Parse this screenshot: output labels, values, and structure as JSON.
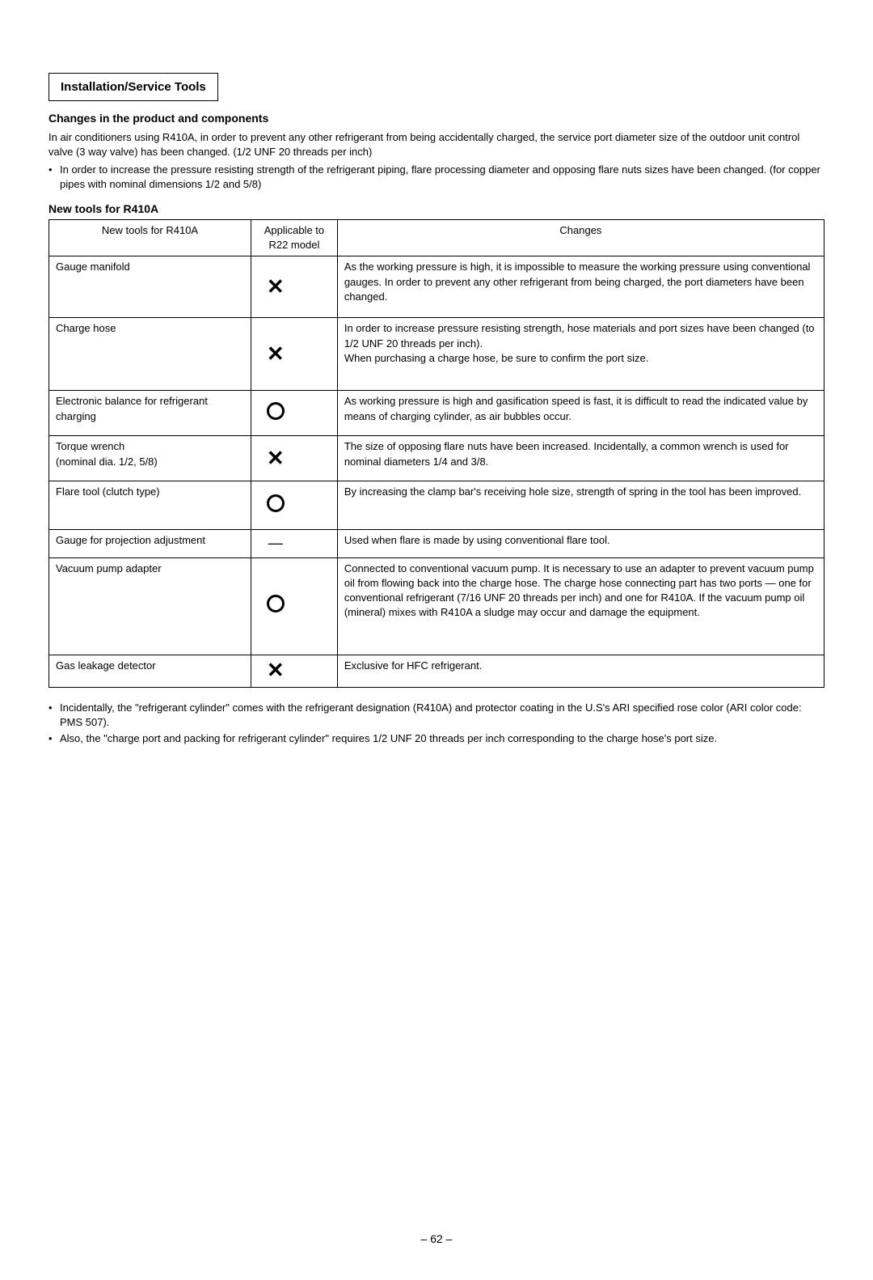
{
  "sectionTitle": "Installation/Service Tools",
  "changesHeading": "Changes in the product and components",
  "introParagraph": "In air conditioners using R410A, in order to prevent any other refrigerant from being accidentally charged, the service port diameter size of the outdoor unit control valve (3 way valve) has been changed. (1/2 UNF 20 threads per inch)",
  "introBullets": [
    "In order to increase the pressure resisting strength of the refrigerant piping, flare processing diameter and opposing flare nuts sizes have been changed. (for copper pipes with nominal dimensions 1/2 and 5/8)"
  ],
  "tableHeading": "New tools for R410A",
  "table": {
    "columns": [
      "New tools for R410A",
      "Applicable to R22 model",
      "Changes"
    ],
    "rows": [
      {
        "tool": "Gauge manifold",
        "symbol": "x",
        "changes": "As the working pressure is high, it is impossible to measure the working pressure using conventional gauges. In order to prevent any other refrigerant from being charged, the port diameters have been changed."
      },
      {
        "tool": "Charge hose",
        "symbol": "x",
        "changes": "In order to increase pressure resisting strength, hose materials and port sizes have been changed (to 1/2 UNF 20 threads per inch).\nWhen purchasing a charge hose, be sure to confirm the port size."
      },
      {
        "tool": "Electronic balance for refrigerant charging",
        "symbol": "o",
        "changes": "As working pressure is high and gasification speed is fast, it is difficult to read the indicated value by means of charging cylinder, as air bubbles occur."
      },
      {
        "tool": "Torque wrench\n(nominal dia. 1/2, 5/8)",
        "symbol": "x",
        "changes": "The size of opposing flare nuts have been increased. Incidentally, a common wrench is used for nominal diameters 1/4 and 3/8."
      },
      {
        "tool": "Flare tool (clutch type)",
        "symbol": "o",
        "changes": "By increasing the clamp bar's receiving hole size, strength of spring in the tool has been improved."
      },
      {
        "tool": "Gauge for projection adjustment",
        "symbol": "dash",
        "changes": "Used when flare is made by using conventional flare tool."
      },
      {
        "tool": "Vacuum pump adapter",
        "symbol": "o",
        "changes": "Connected to conventional vacuum pump. It is necessary to use an adapter to prevent vacuum pump oil from flowing back into the charge hose. The charge hose connecting part has two ports — one for conventional refrigerant (7/16 UNF 20 threads per inch) and one for R410A. If the vacuum pump oil (mineral) mixes with R410A a sludge may occur and damage the equipment."
      },
      {
        "tool": "Gas leakage detector",
        "symbol": "x",
        "changes": "Exclusive for HFC refrigerant."
      }
    ]
  },
  "footBullets": [
    "Incidentally, the \"refrigerant cylinder\" comes with the refrigerant designation (R410A) and protector coating in the U.S's ARI specified rose color (ARI color code: PMS 507).",
    "Also, the \"charge port and packing for refrigerant cylinder\" requires 1/2 UNF 20 threads per inch corresponding to the charge hose's port size."
  ],
  "pageNumber": "– 62 –",
  "rowMinHeights": [
    76,
    90,
    56,
    56,
    60,
    20,
    120,
    40
  ]
}
